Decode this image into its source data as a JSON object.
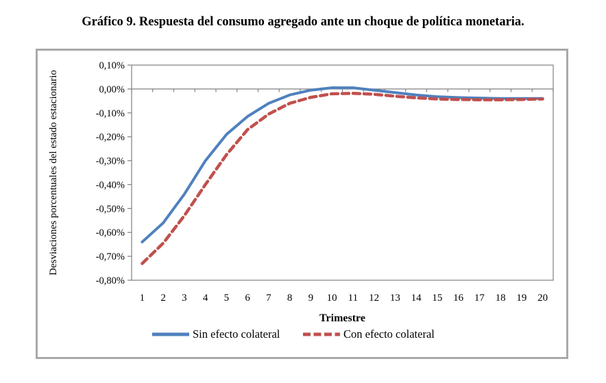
{
  "title": "Gráfico 9. Respuesta del consumo agregado ante un choque de política monetaria.",
  "chart_data": {
    "type": "line",
    "title": "Gráfico 9. Respuesta del consumo agregado ante un choque de política monetaria.",
    "xlabel": "Trimestre",
    "ylabel": "Desviaciones porcentuales del estado estacionario",
    "x": [
      1,
      2,
      3,
      4,
      5,
      6,
      7,
      8,
      9,
      10,
      11,
      12,
      13,
      14,
      15,
      16,
      17,
      18,
      19,
      20
    ],
    "ylim": [
      -0.8,
      0.1
    ],
    "y_tick_step": 0.1,
    "y_tick_labels": [
      "0,10%",
      "0,00%",
      "-0,10%",
      "-0,20%",
      "-0,30%",
      "-0,40%",
      "-0,50%",
      "-0,60%",
      "-0,70%",
      "-0,80%"
    ],
    "grid": "zero-line-only",
    "legend_position": "bottom",
    "axis_color": "#808080",
    "series": [
      {
        "name": "Sin efecto colateral",
        "color": "#4F81BD",
        "style": "solid",
        "values": [
          -0.64,
          -0.56,
          -0.44,
          -0.3,
          -0.19,
          -0.115,
          -0.06,
          -0.025,
          -0.005,
          0.005,
          0.005,
          -0.005,
          -0.015,
          -0.025,
          -0.032,
          -0.036,
          -0.038,
          -0.04,
          -0.04,
          -0.04
        ]
      },
      {
        "name": "Con efecto colateral",
        "color": "#C0504D",
        "style": "dashed",
        "values": [
          -0.73,
          -0.645,
          -0.53,
          -0.4,
          -0.275,
          -0.17,
          -0.105,
          -0.06,
          -0.035,
          -0.02,
          -0.018,
          -0.022,
          -0.03,
          -0.037,
          -0.042,
          -0.044,
          -0.045,
          -0.045,
          -0.044,
          -0.042
        ]
      }
    ]
  }
}
